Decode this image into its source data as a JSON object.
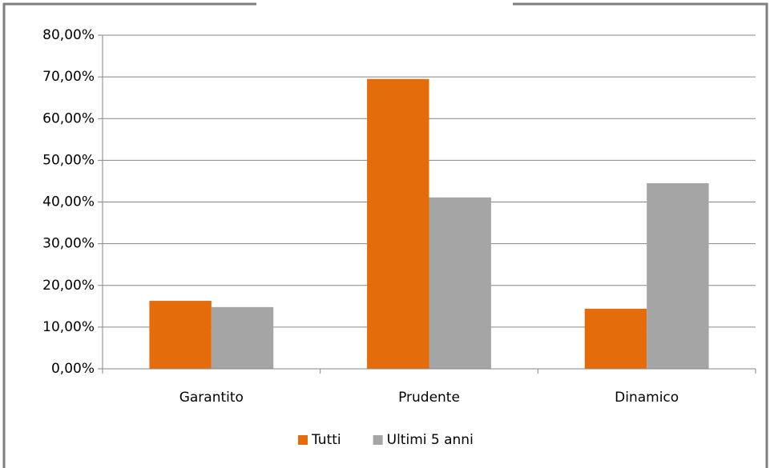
{
  "chart_data": {
    "type": "bar",
    "categories": [
      "Garantito",
      "Prudente",
      "Dinamico"
    ],
    "series": [
      {
        "name": "Tutti",
        "color": "#e46c0a",
        "values": [
          16.3,
          69.5,
          14.4
        ]
      },
      {
        "name": "Ultimi 5 anni",
        "color": "#a5a5a5",
        "values": [
          14.8,
          41.1,
          44.5
        ]
      }
    ],
    "ylim": [
      0,
      80
    ],
    "yticks": [
      {
        "value": 0,
        "label": "0,00%"
      },
      {
        "value": 10,
        "label": "10,00%"
      },
      {
        "value": 20,
        "label": "20,00%"
      },
      {
        "value": 30,
        "label": "30,00%"
      },
      {
        "value": 40,
        "label": "40,00%"
      },
      {
        "value": 50,
        "label": "50,00%"
      },
      {
        "value": 60,
        "label": "60,00%"
      },
      {
        "value": 70,
        "label": "70,00%"
      },
      {
        "value": 80,
        "label": "80,00%"
      }
    ],
    "grid": true,
    "legend": "bottom"
  }
}
